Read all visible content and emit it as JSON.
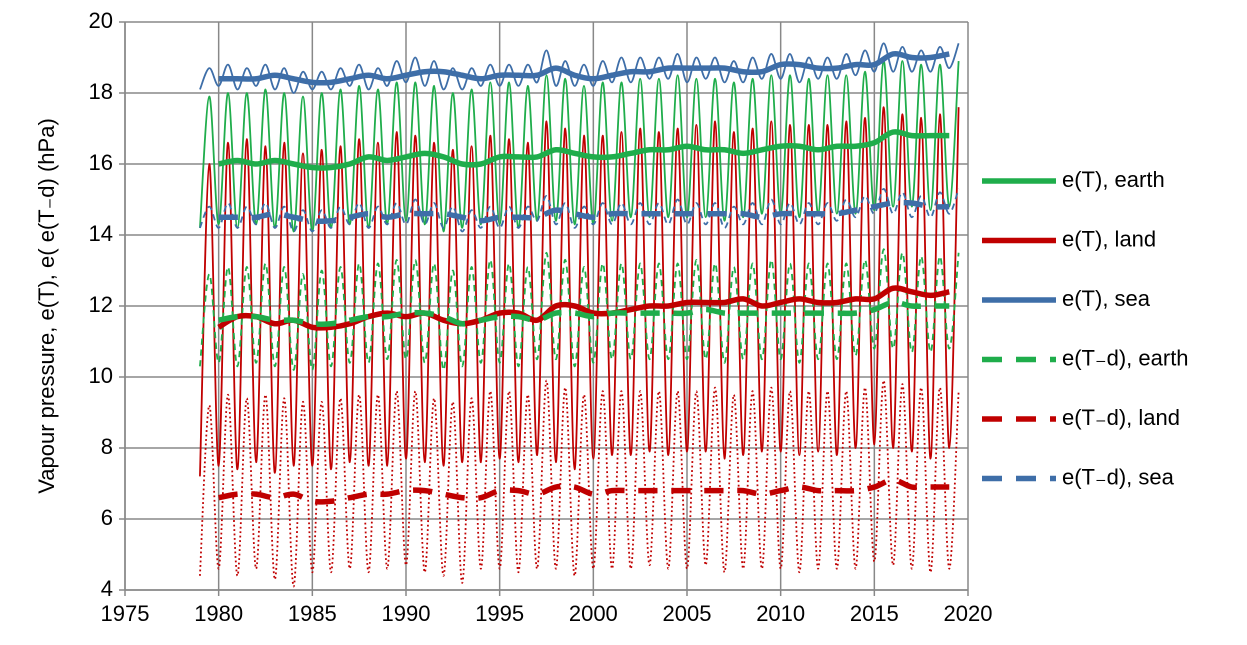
{
  "chart_data": {
    "type": "line",
    "ylabel": "Vapour pressure, e(T), e( e(T₋d) (hPa)",
    "xlim": [
      1975,
      2020
    ],
    "xticks": [
      1975,
      1980,
      1985,
      1990,
      1995,
      2000,
      2005,
      2010,
      2015,
      2020
    ],
    "ylim": [
      4,
      20
    ],
    "yticks": [
      4,
      6,
      8,
      10,
      12,
      14,
      16,
      18,
      20
    ],
    "grid": true,
    "legend": "right",
    "x": [
      1980,
      1981,
      1982,
      1983,
      1984,
      1985,
      1986,
      1987,
      1988,
      1989,
      1990,
      1991,
      1992,
      1993,
      1994,
      1995,
      1996,
      1997,
      1998,
      1999,
      2000,
      2001,
      2002,
      2003,
      2004,
      2005,
      2006,
      2007,
      2008,
      2009,
      2010,
      2011,
      2012,
      2013,
      2014,
      2015,
      2016,
      2017,
      2018,
      2019
    ],
    "series": [
      {
        "name": "e(T), earth",
        "color": "#1fad4b",
        "dash": "solid",
        "values": [
          16.0,
          16.1,
          16.0,
          16.1,
          16.0,
          15.9,
          15.9,
          16.0,
          16.2,
          16.1,
          16.2,
          16.3,
          16.2,
          16.0,
          16.0,
          16.2,
          16.2,
          16.2,
          16.4,
          16.3,
          16.2,
          16.2,
          16.3,
          16.4,
          16.4,
          16.5,
          16.4,
          16.4,
          16.3,
          16.4,
          16.5,
          16.5,
          16.4,
          16.5,
          16.5,
          16.6,
          16.9,
          16.8,
          16.8,
          16.8
        ]
      },
      {
        "name": "e(T), land",
        "color": "#c00000",
        "dash": "solid",
        "values": [
          11.4,
          11.7,
          11.7,
          11.5,
          11.6,
          11.4,
          11.4,
          11.5,
          11.7,
          11.8,
          11.7,
          11.8,
          11.6,
          11.5,
          11.6,
          11.8,
          11.8,
          11.6,
          12.0,
          12.0,
          11.8,
          11.8,
          11.9,
          12.0,
          12.0,
          12.1,
          12.1,
          12.1,
          12.2,
          12.0,
          12.1,
          12.2,
          12.1,
          12.1,
          12.2,
          12.2,
          12.5,
          12.4,
          12.3,
          12.4
        ]
      },
      {
        "name": "e(T), sea",
        "color": "#3e6ea8",
        "dash": "solid",
        "values": [
          18.4,
          18.4,
          18.4,
          18.5,
          18.4,
          18.3,
          18.3,
          18.4,
          18.5,
          18.4,
          18.5,
          18.6,
          18.6,
          18.5,
          18.4,
          18.5,
          18.5,
          18.5,
          18.7,
          18.5,
          18.4,
          18.5,
          18.6,
          18.6,
          18.7,
          18.7,
          18.7,
          18.7,
          18.6,
          18.6,
          18.8,
          18.8,
          18.7,
          18.7,
          18.8,
          18.8,
          19.1,
          19.0,
          19.0,
          19.1
        ]
      },
      {
        "name": "e(T₋d), earth",
        "color": "#1fad4b",
        "dash": "dashed",
        "values": [
          11.6,
          11.7,
          11.7,
          11.6,
          11.6,
          11.5,
          11.5,
          11.6,
          11.7,
          11.7,
          11.8,
          11.8,
          11.7,
          11.5,
          11.6,
          11.7,
          11.7,
          11.6,
          11.8,
          11.8,
          11.7,
          11.8,
          11.8,
          11.8,
          11.8,
          11.8,
          11.9,
          11.8,
          11.8,
          11.8,
          11.8,
          11.8,
          11.8,
          11.8,
          11.8,
          11.9,
          12.1,
          12.0,
          12.0,
          12.0
        ]
      },
      {
        "name": "e(T₋d), land",
        "color": "#c00000",
        "dash": "dashed",
        "values": [
          6.6,
          6.7,
          6.7,
          6.6,
          6.7,
          6.5,
          6.5,
          6.6,
          6.7,
          6.7,
          6.8,
          6.8,
          6.7,
          6.6,
          6.6,
          6.8,
          6.8,
          6.7,
          6.9,
          6.9,
          6.7,
          6.8,
          6.8,
          6.8,
          6.8,
          6.8,
          6.8,
          6.8,
          6.8,
          6.7,
          6.8,
          6.9,
          6.8,
          6.8,
          6.8,
          6.9,
          7.1,
          6.9,
          6.9,
          6.9
        ]
      },
      {
        "name": "e(T₋d), sea",
        "color": "#3e6ea8",
        "dash": "dashed",
        "values": [
          14.5,
          14.5,
          14.5,
          14.6,
          14.5,
          14.4,
          14.4,
          14.5,
          14.6,
          14.5,
          14.6,
          14.6,
          14.6,
          14.5,
          14.4,
          14.5,
          14.5,
          14.5,
          14.7,
          14.6,
          14.5,
          14.6,
          14.6,
          14.6,
          14.6,
          14.6,
          14.6,
          14.6,
          14.6,
          14.5,
          14.6,
          14.6,
          14.6,
          14.6,
          14.7,
          14.8,
          14.9,
          14.9,
          14.8,
          14.8
        ]
      }
    ],
    "seasonal": {
      "x": [
        1979,
        1979.5,
        1980,
        1980.5,
        1981,
        1981.5,
        1982,
        1982.5,
        1983,
        1983.5,
        1984,
        1984.5,
        1985,
        1985.5,
        1986,
        1986.5,
        1987,
        1987.5,
        1988,
        1988.5,
        1989,
        1989.5,
        1990,
        1990.5,
        1991,
        1991.5,
        1992,
        1992.5,
        1993,
        1993.5,
        1994,
        1994.5,
        1995,
        1995.5,
        1996,
        1996.5,
        1997,
        1997.5,
        1998,
        1998.5,
        1999,
        1999.5,
        2000,
        2000.5,
        2001,
        2001.5,
        2002,
        2002.5,
        2003,
        2003.5,
        2004,
        2004.5,
        2005,
        2005.5,
        2006,
        2006.5,
        2007,
        2007.5,
        2008,
        2008.5,
        2009,
        2009.5,
        2010,
        2010.5,
        2011,
        2011.5,
        2012,
        2012.5,
        2013,
        2013.5,
        2014,
        2014.5,
        2015,
        2015.5,
        2016,
        2016.5,
        2017,
        2017.5,
        2018,
        2018.5,
        2019,
        2019.5
      ],
      "series": [
        {
          "color": "#1fad4b",
          "dash": "solid",
          "values": [
            14.2,
            17.9,
            14.3,
            18.0,
            14.2,
            18.0,
            14.3,
            18.1,
            14.2,
            18.0,
            14.1,
            17.9,
            14.1,
            18.0,
            14.2,
            18.1,
            14.3,
            18.2,
            14.2,
            18.1,
            14.3,
            18.3,
            14.4,
            18.3,
            14.3,
            18.2,
            14.1,
            18.0,
            14.2,
            18.1,
            14.3,
            18.3,
            14.3,
            18.3,
            14.2,
            18.2,
            14.4,
            18.5,
            14.4,
            18.4,
            14.3,
            18.2,
            14.3,
            18.3,
            14.4,
            18.3,
            14.5,
            18.4,
            14.5,
            18.4,
            14.5,
            18.5,
            14.5,
            18.4,
            14.5,
            18.4,
            14.4,
            18.3,
            14.5,
            18.4,
            14.6,
            18.5,
            14.6,
            18.5,
            14.5,
            18.4,
            14.6,
            18.5,
            14.6,
            18.5,
            14.6,
            18.6,
            14.7,
            18.9,
            14.8,
            18.9,
            14.8,
            18.8,
            14.7,
            18.8,
            14.8,
            18.9
          ]
        },
        {
          "color": "#c00000",
          "dash": "solid",
          "values": [
            7.2,
            16.0,
            7.5,
            16.6,
            7.4,
            16.7,
            7.6,
            16.5,
            7.3,
            16.6,
            7.5,
            16.3,
            7.5,
            16.4,
            7.4,
            16.5,
            7.6,
            16.7,
            7.5,
            16.6,
            7.5,
            16.9,
            7.7,
            16.8,
            7.6,
            16.6,
            7.5,
            16.4,
            7.6,
            16.5,
            7.6,
            16.8,
            7.7,
            16.7,
            7.6,
            16.6,
            7.8,
            17.2,
            7.6,
            17.0,
            7.4,
            16.8,
            7.7,
            16.8,
            7.8,
            16.9,
            7.8,
            17.0,
            7.9,
            16.9,
            7.8,
            17.0,
            7.9,
            17.1,
            7.9,
            17.2,
            7.7,
            16.9,
            7.8,
            17.0,
            7.9,
            17.2,
            7.9,
            17.1,
            7.8,
            17.1,
            7.9,
            17.1,
            7.8,
            17.2,
            8.0,
            17.3,
            8.1,
            17.6,
            8.0,
            17.4,
            7.9,
            17.3,
            7.7,
            17.4,
            8.0,
            17.6
          ]
        },
        {
          "color": "#3e6ea8",
          "dash": "solid",
          "values": [
            18.1,
            18.7,
            18.2,
            18.8,
            18.1,
            18.7,
            18.2,
            18.8,
            18.1,
            18.7,
            18.0,
            18.6,
            18.1,
            18.6,
            18.1,
            18.7,
            18.2,
            18.8,
            18.1,
            18.7,
            18.2,
            18.9,
            18.3,
            19.0,
            18.2,
            18.9,
            18.1,
            18.7,
            18.1,
            18.7,
            18.2,
            18.8,
            18.2,
            18.8,
            18.2,
            18.8,
            18.3,
            19.2,
            18.2,
            18.9,
            18.2,
            18.8,
            18.2,
            18.9,
            18.3,
            19.0,
            18.3,
            19.0,
            18.4,
            19.0,
            18.4,
            19.1,
            18.3,
            19.0,
            18.4,
            19.0,
            18.3,
            18.9,
            18.3,
            19.0,
            18.4,
            19.1,
            18.4,
            19.1,
            18.3,
            19.0,
            18.4,
            19.0,
            18.4,
            19.1,
            18.5,
            19.2,
            18.6,
            19.4,
            18.6,
            19.3,
            18.6,
            19.2,
            18.6,
            19.3,
            18.7,
            19.4
          ]
        },
        {
          "color": "#1fad4b",
          "dash": "dashed",
          "values": [
            10.3,
            12.9,
            10.4,
            13.1,
            10.3,
            13.1,
            10.4,
            13.2,
            10.3,
            13.1,
            10.2,
            12.9,
            10.2,
            13.0,
            10.3,
            13.1,
            10.4,
            13.2,
            10.4,
            13.2,
            10.5,
            13.3,
            10.5,
            13.3,
            10.4,
            13.2,
            10.2,
            13.0,
            10.3,
            13.1,
            10.4,
            13.3,
            10.4,
            13.2,
            10.3,
            13.1,
            10.5,
            13.5,
            10.5,
            13.3,
            10.3,
            13.1,
            10.4,
            13.2,
            10.5,
            13.2,
            10.5,
            13.2,
            10.5,
            13.2,
            10.5,
            13.2,
            10.5,
            13.3,
            10.5,
            13.2,
            10.4,
            13.1,
            10.5,
            13.2,
            10.5,
            13.3,
            10.5,
            13.2,
            10.4,
            13.2,
            10.5,
            13.2,
            10.5,
            13.2,
            10.6,
            13.3,
            10.8,
            13.6,
            10.8,
            13.5,
            10.7,
            13.4,
            10.7,
            13.4,
            10.8,
            13.5
          ]
        },
        {
          "color": "#c00000",
          "dash": "dotted",
          "values": [
            4.4,
            9.2,
            4.6,
            9.5,
            4.4,
            9.4,
            4.6,
            9.5,
            4.3,
            9.4,
            4.1,
            9.3,
            4.5,
            9.3,
            4.5,
            9.4,
            4.6,
            9.5,
            4.5,
            9.5,
            4.6,
            9.6,
            4.7,
            9.6,
            4.5,
            9.4,
            4.4,
            9.3,
            4.2,
            9.4,
            4.6,
            9.6,
            4.6,
            9.6,
            4.5,
            9.5,
            4.6,
            9.9,
            4.6,
            9.7,
            4.4,
            9.5,
            4.6,
            9.6,
            4.6,
            9.6,
            4.6,
            9.6,
            4.7,
            9.6,
            4.6,
            9.6,
            4.6,
            9.6,
            4.7,
            9.7,
            4.5,
            9.5,
            4.6,
            9.6,
            4.6,
            9.7,
            4.6,
            9.6,
            4.5,
            9.6,
            4.6,
            9.6,
            4.6,
            9.6,
            4.6,
            9.7,
            4.8,
            9.9,
            4.7,
            9.8,
            4.6,
            9.7,
            4.5,
            9.7,
            4.6,
            9.6
          ]
        },
        {
          "color": "#3e6ea8",
          "dash": "dashed",
          "values": [
            14.2,
            14.8,
            14.2,
            14.9,
            14.2,
            14.8,
            14.3,
            14.9,
            14.2,
            14.8,
            14.1,
            14.7,
            14.1,
            14.7,
            14.2,
            14.8,
            14.3,
            14.9,
            14.2,
            14.8,
            14.3,
            14.9,
            14.3,
            15.0,
            14.3,
            14.9,
            14.2,
            14.8,
            14.1,
            14.7,
            14.2,
            14.8,
            14.2,
            14.8,
            14.2,
            14.8,
            14.4,
            15.1,
            14.3,
            14.9,
            14.2,
            14.8,
            14.3,
            14.9,
            14.3,
            14.9,
            14.3,
            14.9,
            14.3,
            14.9,
            14.3,
            15.0,
            14.3,
            14.9,
            14.3,
            14.9,
            14.2,
            14.8,
            14.3,
            14.9,
            14.3,
            15.0,
            14.3,
            14.9,
            14.3,
            14.9,
            14.3,
            14.9,
            14.4,
            15.0,
            14.5,
            15.1,
            14.6,
            15.3,
            14.6,
            15.2,
            14.5,
            15.1,
            14.5,
            15.2,
            14.6,
            15.3
          ]
        }
      ]
    }
  }
}
